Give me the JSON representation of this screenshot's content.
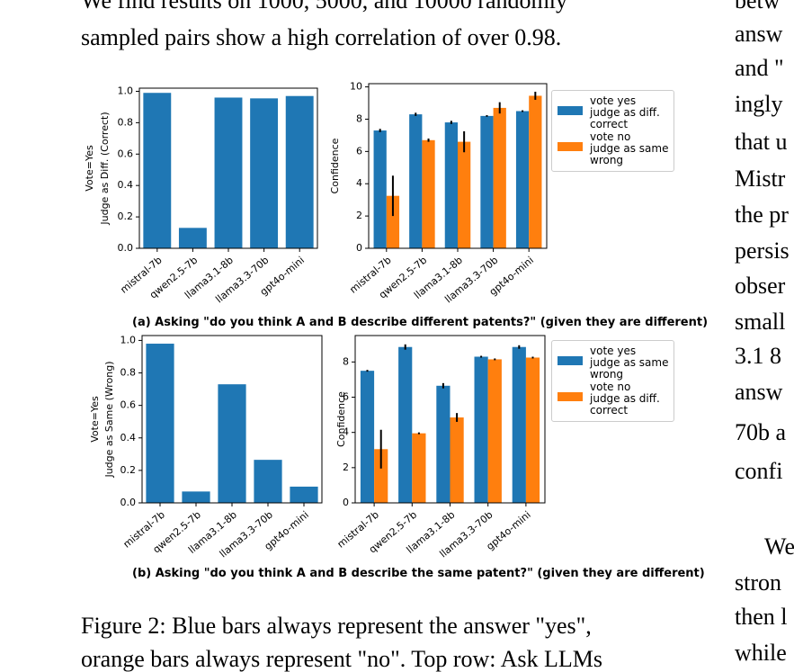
{
  "paper": {
    "left_column": {
      "paragraph_lines": [
        "We find results on 1000, 5000, and 10000 randomly",
        "sampled pairs show a high correlation of over 0.98."
      ]
    },
    "figure": {
      "caption_a": "(a) Asking \"do you think A and B describe different patents?\" (given they are different)",
      "caption_b": "(b) Asking \"do you think A and B describe the same patent?\" (given they are different)",
      "caption_lines": [
        "Figure 2: Blue bars always represent the answer \"yes\",",
        "orange bars always represent \"no\". Top row: Ask LLMs"
      ]
    },
    "right_column_lines": [
      "betw",
      "answ",
      "and \"",
      "ingly",
      "that u",
      "Mistr",
      "the pr",
      "persis",
      "obser",
      "small",
      "3.1 8",
      "answ",
      "70b a",
      "confi",
      "We",
      "stron",
      "then l",
      "while"
    ]
  },
  "chart_data": [
    {
      "type": "bar",
      "ylabel": [
        "Vote=Yes",
        "Judge as Diff. (Correct)"
      ],
      "categories": [
        "mistral-7b",
        "qwen2.5-7b",
        "llama3.1-8b",
        "llama3.3-70b",
        "gpt4o-mini"
      ],
      "values": [
        0.99,
        0.13,
        0.96,
        0.955,
        0.97
      ],
      "color": "#1f77b4",
      "ylim": [
        0,
        1.02
      ],
      "yticks": [
        {
          "value": 0,
          "label": "0.0"
        },
        0.2,
        0.4,
        0.6,
        0.8,
        {
          "value": 1,
          "label": "1.0"
        }
      ]
    },
    {
      "type": "grouped_bar",
      "ylabel": [
        "Confidence"
      ],
      "categories": [
        "mistral-7b",
        "qwen2.5-7b",
        "llama3.1-8b",
        "llama3.3-70b",
        "gpt4o-mini"
      ],
      "series": [
        {
          "name": "vote yes\njudge as diff.\ncorrect",
          "color": "#1f77b4",
          "values": [
            7.3,
            8.3,
            7.8,
            8.2,
            8.5
          ],
          "errors": [
            0.1,
            0.1,
            0.1,
            0.05,
            0.05
          ]
        },
        {
          "name": "vote no\njudge as same\nwrong",
          "color": "#ff7f0e",
          "values": [
            3.25,
            6.7,
            6.6,
            8.7,
            9.45
          ],
          "errors": [
            1.25,
            0.1,
            0.65,
            0.35,
            0.25
          ]
        }
      ],
      "ylim": [
        0,
        10.2
      ],
      "yticks": [
        0,
        2,
        4,
        6,
        8,
        10
      ],
      "legend": "right"
    },
    {
      "type": "bar",
      "ylabel": [
        "Vote=Yes",
        "Judge as Same (Wrong)"
      ],
      "categories": [
        "mistral-7b",
        "qwen2.5-7b",
        "llama3.1-8b",
        "llama3.3-70b",
        "gpt4o-mini"
      ],
      "values": [
        0.98,
        0.07,
        0.73,
        0.265,
        0.1
      ],
      "color": "#1f77b4",
      "ylim": [
        0,
        1.03
      ],
      "yticks": [
        {
          "value": 0,
          "label": "0.0"
        },
        0.2,
        0.4,
        0.6,
        0.8,
        {
          "value": 1,
          "label": "1.0"
        }
      ]
    },
    {
      "type": "grouped_bar",
      "ylabel": [
        "Confidence"
      ],
      "categories": [
        "mistral-7b",
        "qwen2.5-7b",
        "llama3.1-8b",
        "llama3.3-70b",
        "gpt4o-mini"
      ],
      "series": [
        {
          "name": "vote yes\njudge as same\nwrong",
          "color": "#1f77b4",
          "values": [
            7.5,
            8.85,
            6.65,
            8.3,
            8.85
          ],
          "errors": [
            0.05,
            0.15,
            0.15,
            0.05,
            0.1
          ]
        },
        {
          "name": "vote no\njudge as diff.\ncorrect",
          "color": "#ff7f0e",
          "values": [
            3.05,
            3.95,
            4.85,
            8.15,
            8.25
          ],
          "errors": [
            1.1,
            0.05,
            0.25,
            0.05,
            0.05
          ]
        }
      ],
      "ylim": [
        0,
        9.5
      ],
      "yticks": [
        0,
        2,
        4,
        6,
        8
      ],
      "legend": "right"
    }
  ]
}
